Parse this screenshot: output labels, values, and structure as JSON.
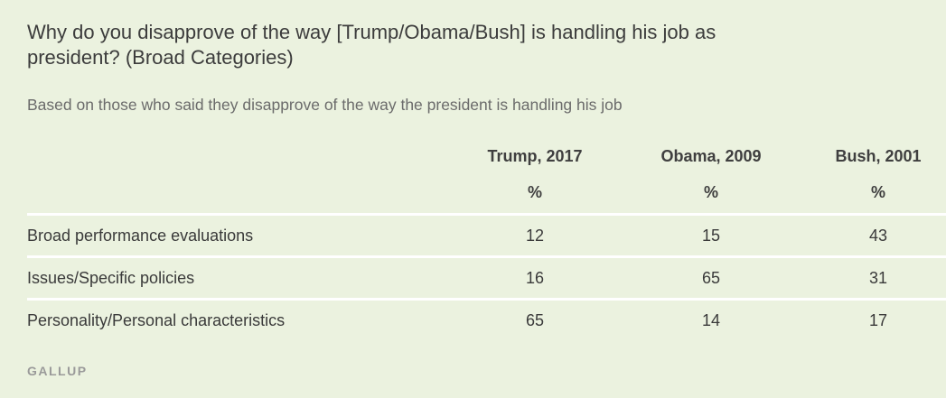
{
  "chart_data": {
    "type": "table",
    "title": "Why do you disapprove of the way [Trump/Obama/Bush] is handling his job as president? (Broad Categories)",
    "subtitle": "Based on those who said they disapprove of the way the president is handling his job",
    "columns": [
      "Trump, 2017",
      "Obama, 2009",
      "Bush, 2001"
    ],
    "unit": "%",
    "rows": [
      {
        "label": "Broad performance evaluations",
        "values": [
          "12",
          "15",
          "43"
        ]
      },
      {
        "label": "Issues/Specific policies",
        "values": [
          "16",
          "65",
          "31"
        ]
      },
      {
        "label": "Personality/Personal characteristics",
        "values": [
          "65",
          "14",
          "17"
        ]
      }
    ]
  },
  "footer": {
    "source": "GALLUP"
  },
  "colors": {
    "background": "#ebf2df",
    "divider": "#ffffff",
    "text": "#3a3a3a",
    "muted": "#9a9a9a"
  }
}
